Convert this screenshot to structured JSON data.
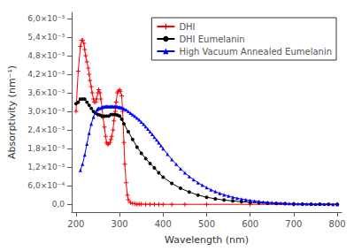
{
  "chart_data": {
    "type": "line",
    "xlabel": "Wavelength (nm)",
    "ylabel": "Absorptivity (nm⁻¹)",
    "xlim": [
      190,
      810
    ],
    "ylim": [
      -0.00025,
      0.0062
    ],
    "xticks": [
      200,
      300,
      400,
      500,
      600,
      700,
      800
    ],
    "yticks": [
      {
        "value": 0.0,
        "label": "0,0"
      },
      {
        "value": 0.0006,
        "label": "6,0×10⁻⁴"
      },
      {
        "value": 0.0012,
        "label": "1,2×10⁻³"
      },
      {
        "value": 0.0018,
        "label": "1,8×10⁻³"
      },
      {
        "value": 0.0024,
        "label": "2,4×10⁻³"
      },
      {
        "value": 0.003,
        "label": "3,0×10⁻³"
      },
      {
        "value": 0.0036,
        "label": "3,6×10⁻³"
      },
      {
        "value": 0.0042,
        "label": "4,2×10⁻³"
      },
      {
        "value": 0.0048,
        "label": "4,8×10⁻³"
      },
      {
        "value": 0.0054,
        "label": "5,4×10⁻³"
      },
      {
        "value": 0.006,
        "label": "6,0×10⁻³"
      }
    ],
    "grid": false,
    "legend": "upper right",
    "series": [
      {
        "name": "DHI",
        "color": "red",
        "marker": "plus",
        "x": [
          200,
          205,
          210,
          213,
          215,
          218,
          220,
          222,
          225,
          228,
          230,
          232,
          235,
          237,
          240,
          242,
          245,
          247,
          250,
          252,
          255,
          257,
          260,
          262,
          265,
          268,
          270,
          272,
          275,
          278,
          280,
          282,
          285,
          287,
          290,
          292,
          295,
          297,
          300,
          302,
          305,
          307,
          310,
          312,
          315,
          318,
          320,
          325,
          330,
          335,
          340,
          345,
          350,
          360,
          370,
          380,
          390,
          400,
          420,
          450,
          500,
          600,
          700,
          800
        ],
        "values": [
          0.003,
          0.0043,
          0.0051,
          0.0053,
          0.0053,
          0.0052,
          0.005,
          0.0048,
          0.0046,
          0.0044,
          0.0042,
          0.004,
          0.0038,
          0.0036,
          0.0034,
          0.0033,
          0.0033,
          0.0034,
          0.0036,
          0.0037,
          0.0036,
          0.0034,
          0.0031,
          0.0028,
          0.0025,
          0.0022,
          0.002,
          0.00195,
          0.00195,
          0.002,
          0.0021,
          0.0022,
          0.0024,
          0.0027,
          0.003,
          0.0033,
          0.0036,
          0.00365,
          0.0037,
          0.00365,
          0.0035,
          0.003,
          0.002,
          0.0013,
          0.0007,
          0.0003,
          0.00015,
          6e-05,
          3e-05,
          2e-05,
          1e-05,
          7e-06,
          5e-06,
          3e-06,
          2e-06,
          1e-06,
          0.0,
          0.0,
          0.0,
          0.0,
          0.0,
          0.0,
          0.0,
          0.0
        ]
      },
      {
        "name": "DHI Eumelanin",
        "color": "black",
        "marker": "circle",
        "x": [
          200,
          205,
          210,
          215,
          220,
          225,
          230,
          235,
          240,
          245,
          250,
          255,
          260,
          265,
          270,
          275,
          280,
          285,
          290,
          295,
          300,
          305,
          310,
          320,
          330,
          340,
          350,
          360,
          370,
          380,
          390,
          400,
          420,
          440,
          460,
          480,
          500,
          520,
          540,
          560,
          580,
          600,
          620,
          640,
          660,
          680,
          700,
          720,
          740,
          760,
          780,
          800
        ],
        "values": [
          0.00325,
          0.0033,
          0.0034,
          0.0034,
          0.0034,
          0.0033,
          0.0032,
          0.0031,
          0.003,
          0.00295,
          0.0029,
          0.00288,
          0.00285,
          0.00285,
          0.00285,
          0.00285,
          0.0029,
          0.0029,
          0.0029,
          0.00288,
          0.00285,
          0.00275,
          0.0026,
          0.00235,
          0.0021,
          0.00185,
          0.00165,
          0.00148,
          0.00132,
          0.00118,
          0.00102,
          0.00088,
          0.00068,
          0.00052,
          0.0004,
          0.0003,
          0.00023,
          0.00018,
          0.00014,
          0.00011,
          8.5e-05,
          6.5e-05,
          5e-05,
          3.8e-05,
          2.8e-05,
          2e-05,
          1.4e-05,
          1e-05,
          7e-06,
          5e-06,
          3e-06,
          2e-06
        ]
      },
      {
        "name": "High Vacuum Annealed Eumelanin",
        "color": "blue",
        "marker": "triangle",
        "x": [
          210,
          215,
          220,
          225,
          230,
          235,
          240,
          245,
          248,
          250,
          252,
          255,
          258,
          260,
          263,
          265,
          268,
          270,
          272,
          275,
          278,
          280,
          283,
          285,
          288,
          290,
          292,
          295,
          298,
          300,
          302,
          305,
          308,
          310,
          315,
          320,
          325,
          330,
          335,
          340,
          345,
          350,
          355,
          360,
          365,
          370,
          375,
          380,
          385,
          390,
          395,
          400,
          410,
          420,
          430,
          440,
          450,
          460,
          470,
          480,
          490,
          500,
          510,
          520,
          530,
          540,
          550,
          560,
          570,
          580,
          590,
          600,
          610,
          620,
          630,
          640,
          650,
          660,
          670,
          680,
          690,
          700,
          710,
          720,
          730,
          740,
          750,
          760,
          770,
          780,
          790,
          800
        ],
        "values": [
          0.0011,
          0.0013,
          0.0016,
          0.00195,
          0.0023,
          0.0026,
          0.00282,
          0.00298,
          0.00305,
          0.00308,
          0.0031,
          0.0031,
          0.00312,
          0.00313,
          0.00315,
          0.00315,
          0.00316,
          0.00316,
          0.00316,
          0.00316,
          0.00316,
          0.00316,
          0.00316,
          0.00316,
          0.00316,
          0.00316,
          0.00315,
          0.00315,
          0.00314,
          0.00314,
          0.00313,
          0.00312,
          0.0031,
          0.00308,
          0.00305,
          0.003,
          0.00295,
          0.0029,
          0.00285,
          0.00279,
          0.00273,
          0.00266,
          0.00259,
          0.00251,
          0.00243,
          0.00235,
          0.00226,
          0.00217,
          0.00208,
          0.00199,
          0.0019,
          0.0018,
          0.00162,
          0.00145,
          0.0013,
          0.00115,
          0.00102,
          0.0009,
          0.0008,
          0.0007,
          0.00062,
          0.00054,
          0.00047,
          0.00041,
          0.00036,
          0.00031,
          0.00027,
          0.00023,
          0.0002,
          0.00017,
          0.00015,
          0.00013,
          0.00011,
          9e-05,
          7.8e-05,
          6.6e-05,
          5.6e-05,
          4.7e-05,
          4e-05,
          3.3e-05,
          2.8e-05,
          2.3e-05,
          1.9e-05,
          1.5e-05,
          1.2e-05,
          1e-05,
          8e-06,
          6e-06,
          5e-06,
          4e-06,
          3e-06,
          2e-06
        ]
      }
    ]
  }
}
